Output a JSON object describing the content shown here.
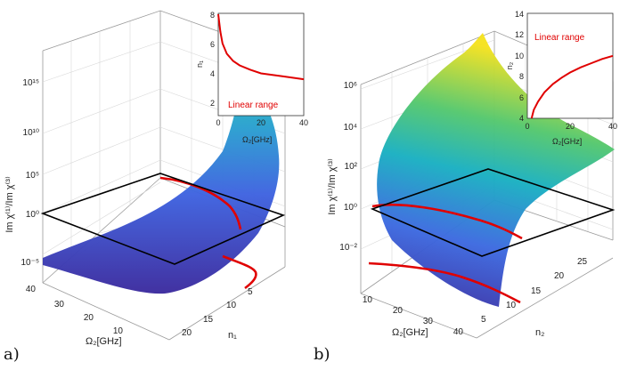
{
  "chart_data": [
    {
      "id": "a",
      "type": "surface3d",
      "panel_label": "a)",
      "zlabel": "Im χ⁽¹⁾/Im χ⁽³⁾",
      "xlabel": "Ω₂[GHz]",
      "ylabel": "n₁",
      "z_ticks": [
        "10⁻⁵",
        "10⁰",
        "10⁵",
        "10¹⁰",
        "10¹⁵"
      ],
      "x_ticks": [
        "40",
        "30",
        "20",
        "10"
      ],
      "y_ticks": [
        "5",
        "10",
        "15",
        "20"
      ],
      "reference_plane": 1,
      "inset": {
        "xlabel": "Ω₂[GHz]",
        "ylabel": "n₁",
        "x_ticks": [
          "0",
          "20",
          "40"
        ],
        "y_ticks": [
          "2",
          "4",
          "6",
          "8"
        ],
        "note": "Linear range",
        "x": [
          0,
          1,
          2,
          4,
          7,
          10,
          15,
          20,
          30,
          40
        ],
        "y": [
          8.0,
          6.8,
          6.0,
          5.3,
          4.8,
          4.5,
          4.2,
          3.95,
          3.75,
          3.55
        ],
        "xlim": [
          0,
          40
        ],
        "ylim": [
          1,
          8
        ]
      }
    },
    {
      "id": "b",
      "type": "surface3d",
      "panel_label": "b)",
      "zlabel": "Im χ⁽¹⁾/Im χ⁽³⁾",
      "xlabel": "Ω₂[GHz]",
      "ylabel": "n₂",
      "z_ticks": [
        "10⁻²",
        "10⁰",
        "10²",
        "10⁴",
        "10⁶"
      ],
      "x_ticks": [
        "10",
        "20",
        "30",
        "40"
      ],
      "y_ticks": [
        "5",
        "10",
        "15",
        "20",
        "25"
      ],
      "reference_plane": 1,
      "inset": {
        "xlabel": "Ω₂[GHz]",
        "ylabel": "n₂",
        "x_ticks": [
          "0",
          "20",
          "40"
        ],
        "y_ticks": [
          "4",
          "6",
          "8",
          "10",
          "12",
          "14"
        ],
        "note": "Linear range",
        "x": [
          2,
          3,
          5,
          8,
          12,
          16,
          20,
          25,
          30,
          35,
          40
        ],
        "y": [
          4.0,
          4.8,
          5.6,
          6.5,
          7.3,
          7.9,
          8.4,
          8.9,
          9.3,
          9.7,
          10.0
        ],
        "xlim": [
          0,
          40
        ],
        "ylim": [
          4,
          14
        ]
      }
    }
  ],
  "colors": {
    "surface_low": "#3b2d9a",
    "surface_mid": "#21a8b8",
    "surface_high": "#f7e526",
    "curve": "#e00000",
    "plane": "#000000"
  }
}
